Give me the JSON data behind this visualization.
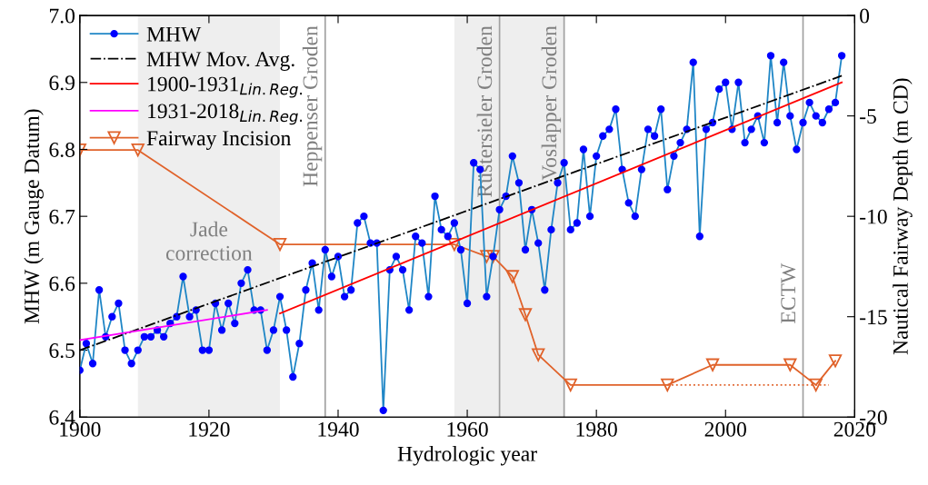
{
  "chart_data": {
    "type": "line",
    "xlabel": "Hydrologic year",
    "ylabel": "MHW (m Gauge Datum)",
    "y2label": "Nautical Fairway Depth (m CD)",
    "xlim": [
      1900,
      2020
    ],
    "xticks": [
      1900,
      1920,
      1940,
      1960,
      1980,
      2000,
      2020
    ],
    "ylim": [
      6.4,
      7.0
    ],
    "yticks": [
      {
        "value": 6.4,
        "label": "6.4"
      },
      {
        "value": 6.5,
        "label": "6.5"
      },
      {
        "value": 6.6,
        "label": "6.6"
      },
      {
        "value": 6.7,
        "label": "6.7"
      },
      {
        "value": 6.8,
        "label": "6.8"
      },
      {
        "value": 6.9,
        "label": "6.9"
      },
      {
        "value": 7.0,
        "label": "7.0"
      }
    ],
    "y2lim": [
      -20,
      0
    ],
    "y2ticks": [
      -20,
      -15,
      -10,
      -5,
      0
    ],
    "grid": false,
    "legend": "top left",
    "series": [
      {
        "name": "MHW",
        "color": "#1f86c6",
        "marker": "circle",
        "line_style": "solid",
        "x": [
          1900,
          1901,
          1902,
          1903,
          1904,
          1905,
          1906,
          1907,
          1908,
          1909,
          1910,
          1911,
          1912,
          1913,
          1914,
          1915,
          1916,
          1917,
          1918,
          1919,
          1920,
          1921,
          1922,
          1923,
          1924,
          1925,
          1926,
          1927,
          1928,
          1929,
          1930,
          1931,
          1932,
          1933,
          1934,
          1935,
          1936,
          1937,
          1938,
          1939,
          1940,
          1941,
          1942,
          1943,
          1944,
          1945,
          1946,
          1947,
          1948,
          1949,
          1950,
          1951,
          1952,
          1953,
          1954,
          1955,
          1956,
          1957,
          1958,
          1959,
          1960,
          1961,
          1962,
          1963,
          1964,
          1965,
          1966,
          1967,
          1968,
          1969,
          1970,
          1971,
          1972,
          1973,
          1974,
          1975,
          1976,
          1977,
          1978,
          1979,
          1980,
          1981,
          1982,
          1983,
          1984,
          1985,
          1986,
          1987,
          1988,
          1989,
          1990,
          1991,
          1992,
          1993,
          1994,
          1995,
          1996,
          1997,
          1998,
          1999,
          2000,
          2001,
          2002,
          2003,
          2004,
          2005,
          2006,
          2007,
          2008,
          2009,
          2010,
          2011,
          2012,
          2013,
          2014,
          2015,
          2016,
          2017,
          2018
        ],
        "values": [
          6.47,
          6.51,
          6.48,
          6.59,
          6.52,
          6.55,
          6.57,
          6.5,
          6.48,
          6.5,
          6.52,
          6.52,
          6.53,
          6.52,
          6.54,
          6.55,
          6.61,
          6.55,
          6.56,
          6.5,
          6.5,
          6.57,
          6.53,
          6.57,
          6.54,
          6.6,
          6.62,
          6.56,
          6.56,
          6.5,
          6.53,
          6.58,
          6.53,
          6.46,
          6.51,
          6.59,
          6.63,
          6.56,
          6.65,
          6.61,
          6.64,
          6.58,
          6.59,
          6.69,
          6.7,
          6.66,
          6.66,
          6.41,
          6.62,
          6.64,
          6.62,
          6.56,
          6.67,
          6.66,
          6.58,
          6.73,
          6.68,
          6.67,
          6.69,
          6.65,
          6.57,
          6.78,
          6.77,
          6.58,
          6.64,
          6.71,
          6.73,
          6.79,
          6.75,
          6.65,
          6.71,
          6.66,
          6.59,
          6.68,
          6.75,
          6.78,
          6.68,
          6.69,
          6.8,
          6.7,
          6.79,
          6.82,
          6.83,
          6.86,
          6.77,
          6.72,
          6.7,
          6.77,
          6.83,
          6.82,
          6.86,
          6.74,
          6.79,
          6.81,
          6.83,
          6.93,
          6.67,
          6.83,
          6.84,
          6.89,
          6.9,
          6.83,
          6.9,
          6.81,
          6.83,
          6.85,
          6.81,
          6.94,
          6.84,
          6.93,
          6.85,
          6.8,
          6.84,
          6.87,
          6.85,
          6.84,
          6.86,
          6.87,
          6.94
        ]
      },
      {
        "name": "MHW Mov. Avg.",
        "color": "#000000",
        "marker": "none",
        "line_style": "dashdot",
        "x": [
          1900,
          2018
        ],
        "values": [
          6.5,
          6.91
        ]
      },
      {
        "name": "1900-1931$_{Lin.Reg.}$",
        "color": "#ff0000",
        "marker": "none",
        "line_style": "solid",
        "x": [
          1931,
          2018
        ],
        "values": [
          6.555,
          6.9
        ]
      },
      {
        "name": "1931-2018$_{Lin.Reg.}$",
        "color": "#ff00ff",
        "marker": "none",
        "line_style": "solid",
        "x": [
          1900,
          1929
        ],
        "values": [
          6.515,
          6.56
        ]
      },
      {
        "name": "Fairway Incision",
        "color": "#e0622a",
        "marker": "triangle",
        "line_style": "solid",
        "axis": "y2",
        "x": [
          1900,
          1909,
          1931,
          1958,
          1963,
          1964,
          1967,
          1969,
          1971,
          1976,
          1991,
          1998,
          2010,
          2014,
          2017
        ],
        "values": [
          -6.7,
          -6.7,
          -11.4,
          -11.4,
          -12.0,
          -12.0,
          -13.0,
          -14.9,
          -16.9,
          -18.4,
          -18.4,
          -17.4,
          -17.4,
          -18.4,
          -17.2
        ]
      },
      {
        "color": "#e0622a",
        "marker": "none",
        "line_style": "dotted",
        "axis": "y2",
        "x": [
          1991,
          2016
        ],
        "values": [
          -18.4,
          -18.4
        ]
      }
    ],
    "bands": [
      {
        "axis": "x",
        "from": 1909,
        "to": 1931,
        "label": "Jade\ncorrection",
        "color": "#eeeeee"
      },
      {
        "axis": "x",
        "from": 1958,
        "to": 1975,
        "color": "#eeeeee"
      }
    ],
    "ref_lines": [
      {
        "axis": "x",
        "value": 1938,
        "label": "Heppenser Groden",
        "color": "#a0a0a0"
      },
      {
        "axis": "x",
        "value": 1965,
        "label": "Rüstersieler Groden",
        "color": "#a0a0a0"
      },
      {
        "axis": "x",
        "value": 1975,
        "label": "Voslapper Groden",
        "color": "#a0a0a0"
      },
      {
        "axis": "x",
        "value": 2012,
        "label": "ECTW",
        "color": "#a0a0a0"
      }
    ]
  }
}
